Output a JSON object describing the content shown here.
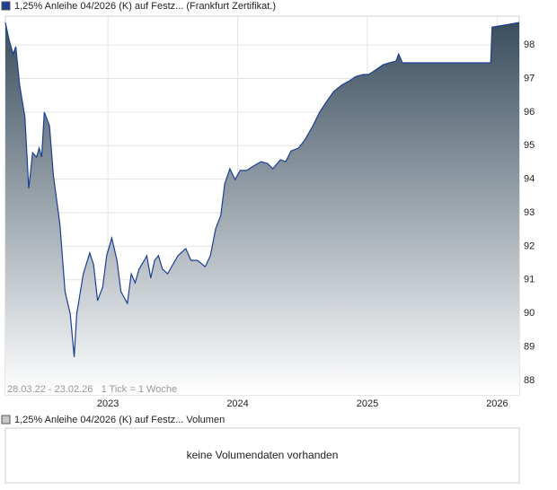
{
  "chart_data": {
    "type": "area",
    "series": [
      {
        "name": "1,25% Anleihe 04/2026 (K) auf Festz... (Frankfurt Zertifikat.)",
        "color": "#1c3f94",
        "values": [
          98.67,
          98.13,
          97.73,
          97.95,
          96.8,
          95.86,
          93.72,
          94.79,
          94.66,
          94.93,
          94.66,
          96.0,
          95.59,
          94.12,
          92.65,
          90.65,
          89.98,
          88.7,
          89.98,
          91.18,
          91.8,
          91.45,
          90.38,
          90.78,
          91.72,
          92.25,
          91.58,
          90.65,
          90.51,
          90.3,
          91.18,
          90.91,
          91.32,
          91.58,
          91.72,
          91.05,
          91.58,
          91.72,
          91.32,
          91.18,
          91.45,
          91.72,
          91.93,
          91.58,
          91.58,
          91.39,
          91.72,
          92.52,
          92.92,
          93.86,
          94.31,
          93.99,
          94.26,
          94.26,
          94.39,
          94.52,
          94.47,
          94.31,
          94.58,
          94.52,
          94.84,
          94.93,
          95.19,
          95.59,
          95.99,
          96.34,
          96.61,
          96.8,
          96.93,
          97.06,
          97.12,
          97.12,
          97.25,
          97.41,
          97.47,
          97.52,
          97.73,
          97.47,
          97.47,
          98.53,
          98.59,
          98.67
        ]
      }
    ],
    "x": [
      2022.21,
      2022.24,
      2022.27,
      2022.29,
      2022.32,
      2022.36,
      2022.39,
      2022.42,
      2022.45,
      2022.47,
      2022.49,
      2022.51,
      2022.55,
      2022.58,
      2022.63,
      2022.67,
      2022.71,
      2022.74,
      2022.76,
      2022.81,
      2022.86,
      2022.89,
      2022.92,
      2022.96,
      2022.99,
      2023.03,
      2023.07,
      2023.1,
      2023.12,
      2023.15,
      2023.18,
      2023.21,
      2023.24,
      2023.28,
      2023.3,
      2023.33,
      2023.36,
      2023.39,
      2023.42,
      2023.46,
      2023.5,
      2023.54,
      2023.6,
      2023.64,
      2023.69,
      2023.75,
      2023.79,
      2023.83,
      2023.87,
      2023.9,
      2023.94,
      2023.98,
      2024.02,
      2024.07,
      2024.12,
      2024.18,
      2024.23,
      2024.27,
      2024.33,
      2024.37,
      2024.41,
      2024.47,
      2024.52,
      2024.58,
      2024.63,
      2024.69,
      2024.74,
      2024.8,
      2024.86,
      2024.91,
      2024.97,
      2025.01,
      2025.06,
      2025.12,
      2025.17,
      2025.22,
      2025.24,
      2025.27,
      2025.95,
      2025.96,
      2026.05,
      2026.17
    ],
    "xlim": [
      2022.21,
      2026.17
    ],
    "xticks": [
      2023,
      2024,
      2025,
      2026
    ],
    "ylim": [
      87.57,
      98.86
    ],
    "yticks": [
      88,
      89,
      90,
      91,
      92,
      93,
      94,
      95,
      96,
      97,
      98
    ],
    "grid": true,
    "footnote": "28.03.22 - 23.02.26   1 Tick = 1 Woche"
  },
  "volume_panel": {
    "legend": "1,25% Anleihe 04/2026 (K) auf Festz... Volumen",
    "legend_color": "#c8c8c8",
    "message": "keine Volumendaten vorhanden"
  }
}
